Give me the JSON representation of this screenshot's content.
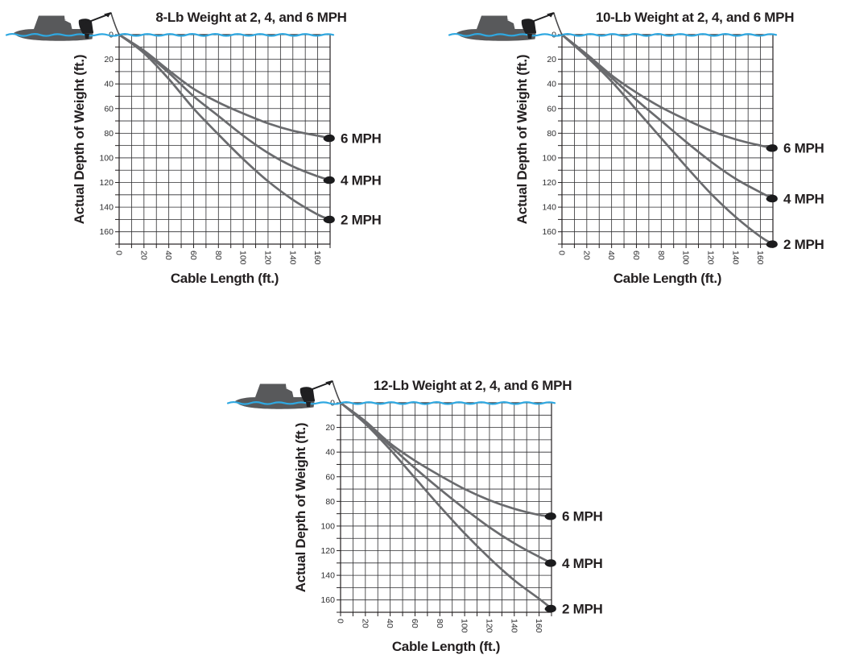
{
  "colors": {
    "text": "#231F20",
    "grid_line": "#2e2e30",
    "curve": "#6a6b6e",
    "water": "#2FA8E1",
    "boat": "#58595B",
    "dot": "#1b1b1d",
    "background": "#ffffff"
  },
  "icons": {
    "boat": "boat-icon",
    "downrigger": "downrigger-icon",
    "weight_dot": "weight-dot"
  },
  "chart_data": [
    {
      "type": "line",
      "title": "8-Lb Weight at 2, 4, and 6 MPH",
      "xlabel": "Cable Length (ft.)",
      "ylabel": "Actual Depth of Weight (ft.)",
      "xlim": [
        0,
        170
      ],
      "ylim": [
        0,
        170
      ],
      "y_inverted": true,
      "grid_step": 10,
      "x_tick_labels": [
        0,
        20,
        40,
        60,
        80,
        100,
        120,
        140,
        160
      ],
      "y_tick_labels": [
        0,
        20,
        40,
        60,
        80,
        100,
        120,
        140,
        160
      ],
      "legend_position": "right-of-curve-ends",
      "x": [
        0,
        20,
        40,
        60,
        80,
        100,
        120,
        140,
        160,
        170
      ],
      "series": [
        {
          "name": "6 MPH",
          "depths": [
            0,
            13,
            29,
            44,
            55,
            64,
            72,
            78,
            82,
            84
          ]
        },
        {
          "name": "4 MPH",
          "depths": [
            0,
            14,
            31,
            50,
            66,
            82,
            96,
            107,
            115,
            118
          ]
        },
        {
          "name": "2 MPH",
          "depths": [
            0,
            15,
            36,
            60,
            81,
            101,
            119,
            134,
            146,
            150
          ]
        }
      ]
    },
    {
      "type": "line",
      "title": "10-Lb Weight at 2, 4, and 6 MPH",
      "xlabel": "Cable Length (ft.)",
      "ylabel": "Actual Depth of Weight (ft.)",
      "xlim": [
        0,
        170
      ],
      "ylim": [
        0,
        170
      ],
      "y_inverted": true,
      "grid_step": 10,
      "x_tick_labels": [
        0,
        20,
        40,
        60,
        80,
        100,
        120,
        140,
        160
      ],
      "y_tick_labels": [
        0,
        20,
        40,
        60,
        80,
        100,
        120,
        140,
        160
      ],
      "legend_position": "right-of-curve-ends",
      "x": [
        0,
        20,
        40,
        60,
        80,
        100,
        120,
        140,
        160,
        170
      ],
      "series": [
        {
          "name": "6 MPH",
          "depths": [
            0,
            16,
            33,
            47,
            59,
            69,
            78,
            85,
            90,
            92
          ]
        },
        {
          "name": "4 MPH",
          "depths": [
            0,
            17,
            35,
            53,
            70,
            87,
            103,
            117,
            128,
            133
          ]
        },
        {
          "name": "2 MPH",
          "depths": [
            0,
            18,
            38,
            61,
            84,
            107,
            129,
            148,
            164,
            170
          ]
        }
      ]
    },
    {
      "type": "line",
      "title": "12-Lb Weight at 2, 4, and 6 MPH",
      "xlabel": "Cable Length (ft.)",
      "ylabel": "Actual Depth of Weight (ft.)",
      "xlim": [
        0,
        170
      ],
      "ylim": [
        0,
        170
      ],
      "y_inverted": true,
      "grid_step": 10,
      "x_tick_labels": [
        0,
        20,
        40,
        60,
        80,
        100,
        120,
        140,
        160
      ],
      "y_tick_labels": [
        0,
        20,
        40,
        60,
        80,
        100,
        120,
        140,
        160
      ],
      "legend_position": "right-of-curve-ends",
      "x": [
        0,
        20,
        40,
        60,
        80,
        100,
        120,
        140,
        160,
        170
      ],
      "series": [
        {
          "name": "6 MPH",
          "depths": [
            0,
            15,
            33,
            47,
            59,
            70,
            79,
            86,
            91,
            92
          ]
        },
        {
          "name": "4 MPH",
          "depths": [
            0,
            16,
            35,
            53,
            70,
            86,
            101,
            114,
            125,
            130
          ]
        },
        {
          "name": "2 MPH",
          "depths": [
            0,
            17,
            38,
            61,
            84,
            106,
            126,
            144,
            159,
            167
          ]
        }
      ]
    }
  ]
}
